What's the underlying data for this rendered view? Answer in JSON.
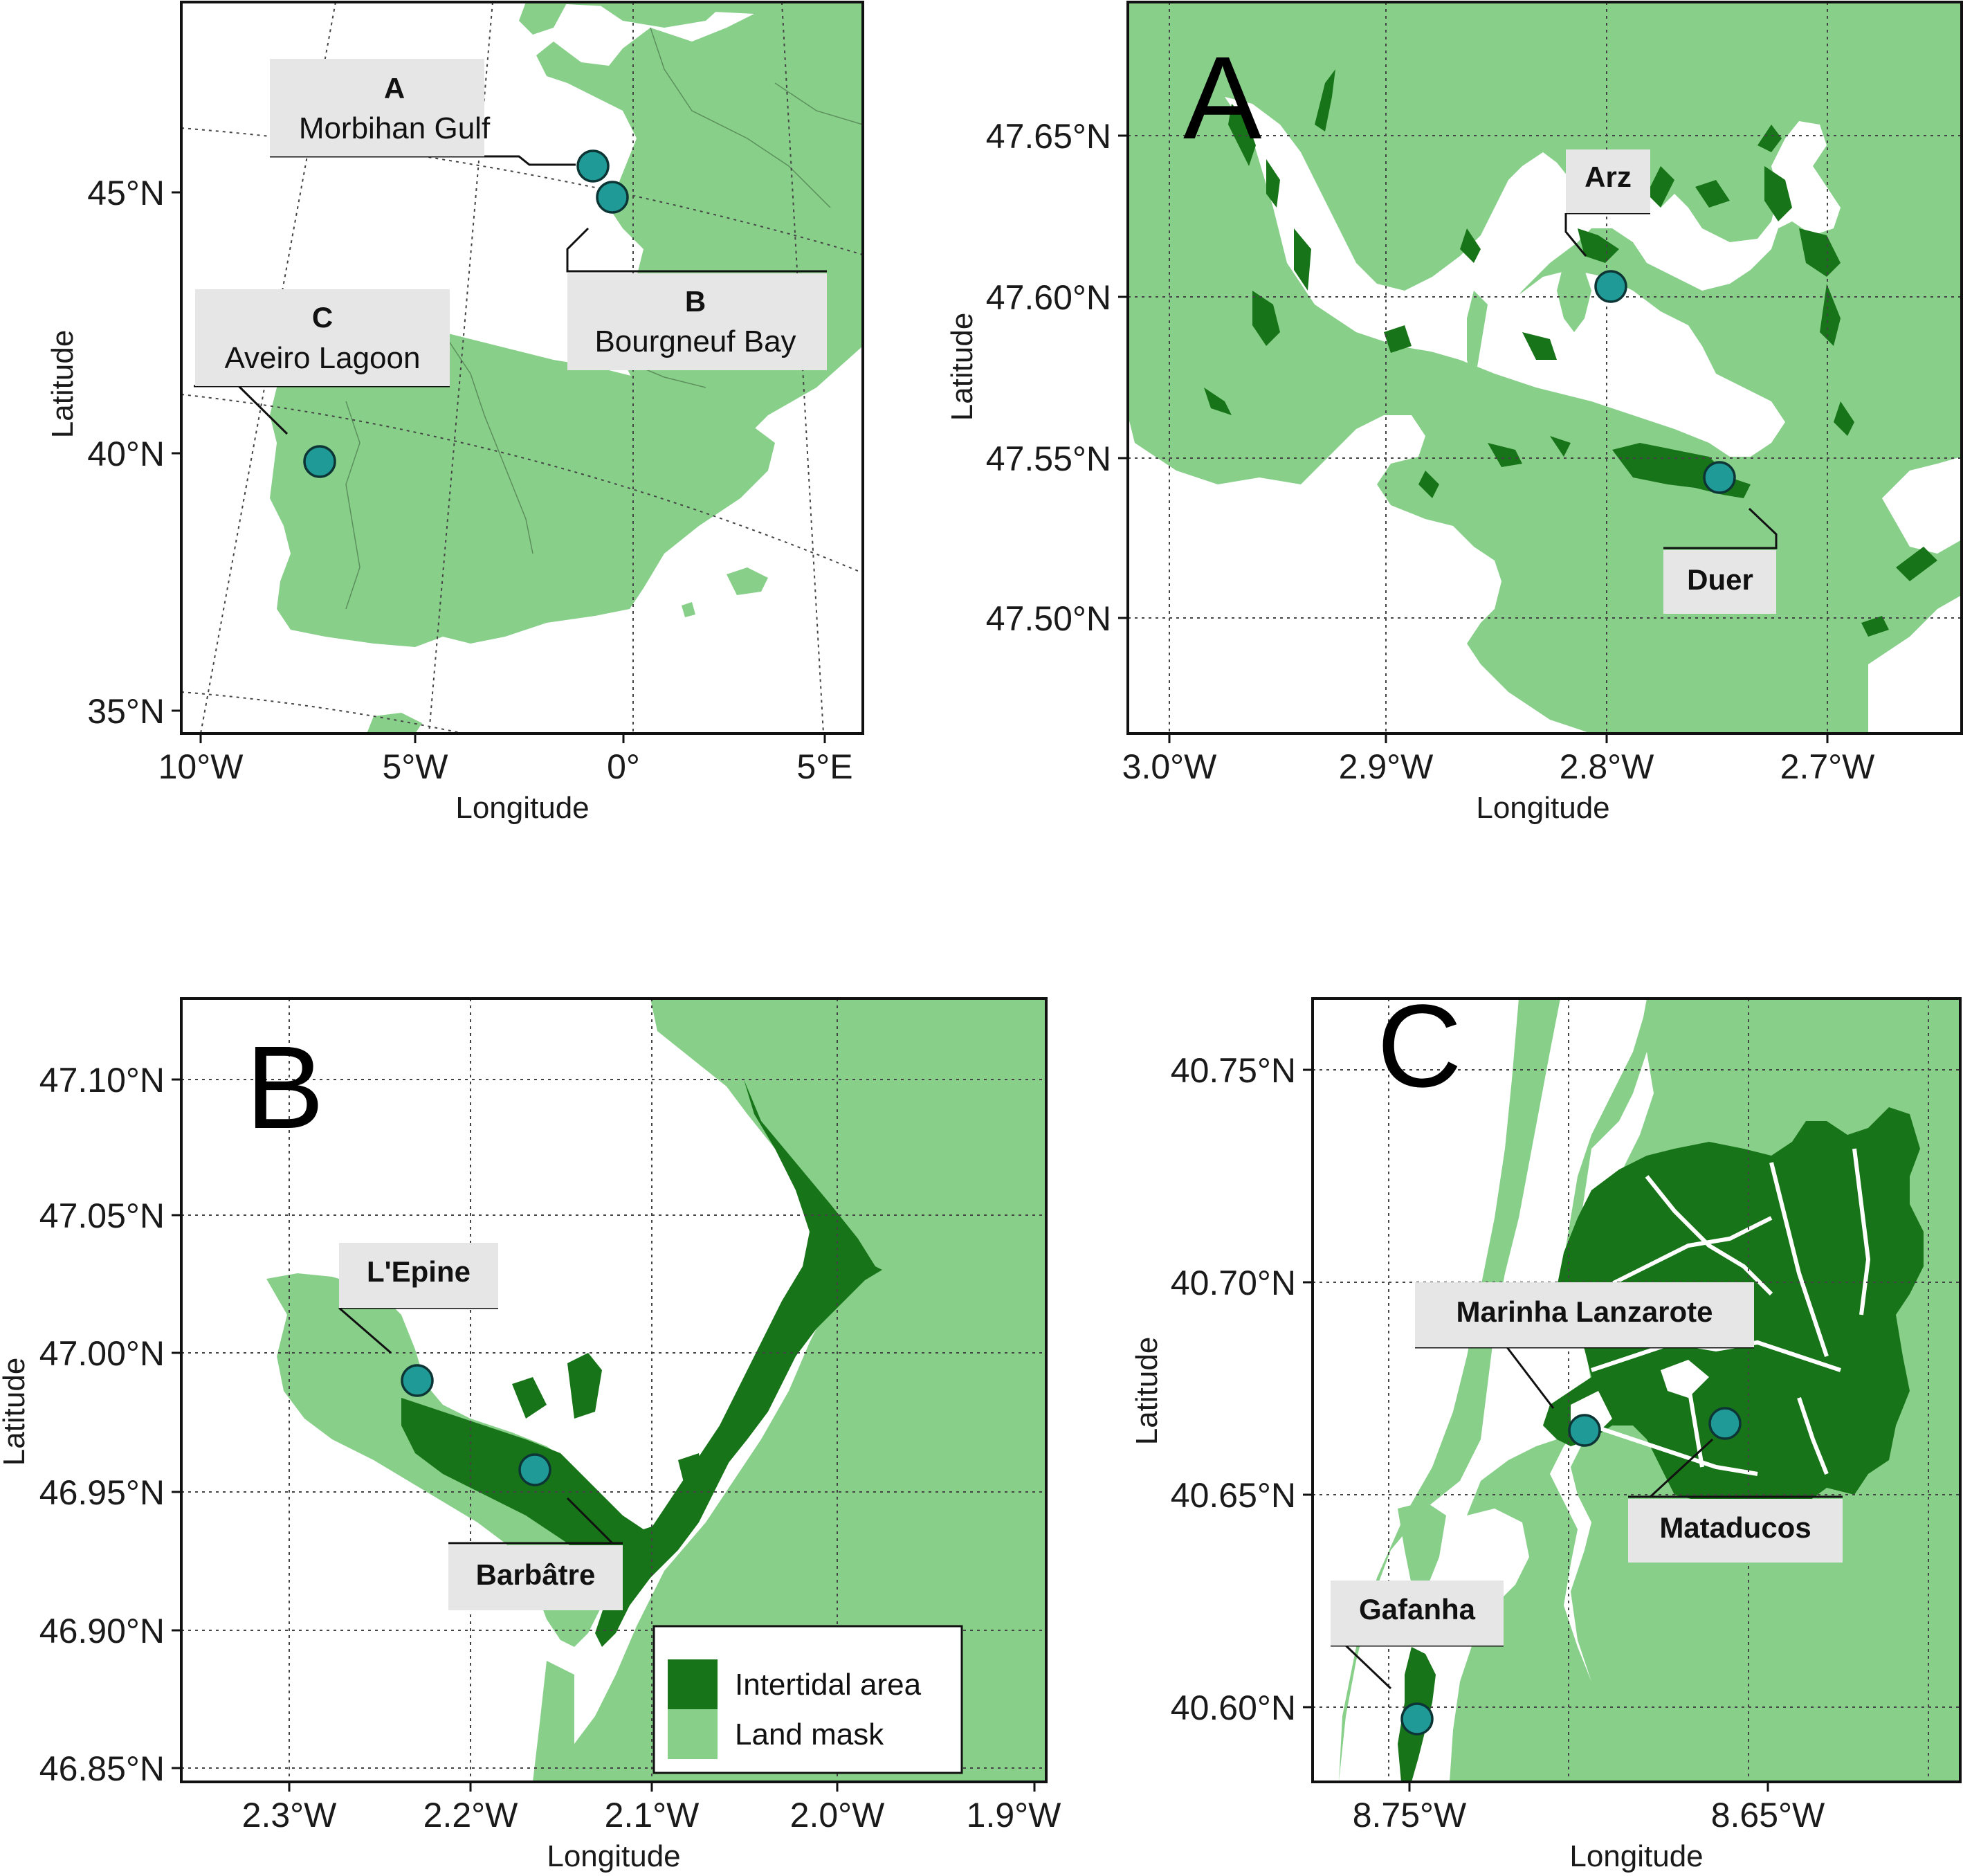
{
  "colors": {
    "land_mask": "#88d08a",
    "intertidal_area": "#187418",
    "water": "#ffffff",
    "site_marker": "#1f9a96"
  },
  "panels": {
    "overview": {
      "x_ticks": [
        "10°W",
        "5°W",
        "0°",
        "5°E"
      ],
      "y_ticks": [
        "45°N",
        "40°N",
        "35°N"
      ],
      "xlabel": "Longitude",
      "ylabel": "Latitude",
      "labels": [
        {
          "code": "A",
          "name": "Morbihan Gulf"
        },
        {
          "code": "B",
          "name": "Bourgneuf Bay"
        },
        {
          "code": "C",
          "name": "Aveiro Lagoon"
        }
      ]
    },
    "A": {
      "letter": "A",
      "x_ticks": [
        "3.0°W",
        "2.9°W",
        "2.8°W",
        "2.7°W"
      ],
      "y_ticks": [
        "47.65°N",
        "47.60°N",
        "47.55°N",
        "47.50°N"
      ],
      "xlabel": "Longitude",
      "ylabel": "Latitude",
      "sites": [
        "Arz",
        "Duer"
      ]
    },
    "B": {
      "letter": "B",
      "x_ticks": [
        "2.3°W",
        "2.2°W",
        "2.1°W",
        "2.0°W",
        "1.9°W"
      ],
      "y_ticks": [
        "47.10°N",
        "47.05°N",
        "47.00°N",
        "46.95°N",
        "46.90°N",
        "46.85°N"
      ],
      "xlabel": "Longitude",
      "ylabel": "Latitude",
      "sites": [
        "L'Epine",
        "Barbâtre"
      ],
      "legend": [
        "Intertidal area",
        "Land mask"
      ]
    },
    "C": {
      "letter": "C",
      "x_ticks": [
        "8.75°W",
        "8.65°W"
      ],
      "y_ticks": [
        "40.75°N",
        "40.70°N",
        "40.65°N",
        "40.60°N"
      ],
      "xlabel": "Longitude",
      "ylabel": "Latitude",
      "sites": [
        "Marinha Lanzarote",
        "Mataducos",
        "Gafanha"
      ]
    }
  }
}
